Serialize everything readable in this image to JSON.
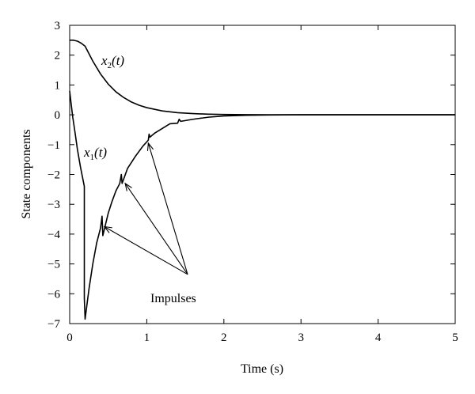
{
  "chart_data": {
    "type": "line",
    "title": "",
    "xlabel": "Time (s)",
    "ylabel": "State components",
    "xlim": [
      0,
      5
    ],
    "ylim": [
      -7,
      3
    ],
    "x_ticks": [
      0,
      1,
      2,
      3,
      4,
      5
    ],
    "y_ticks": [
      3,
      2,
      1,
      0,
      -1,
      -2,
      -3,
      -4,
      -5,
      -6,
      -7
    ],
    "grid": false,
    "series": [
      {
        "label": "x2(t)",
        "color": "#000000",
        "points": [
          [
            0,
            2.5
          ],
          [
            0.05,
            2.5
          ],
          [
            0.1,
            2.47
          ],
          [
            0.15,
            2.4
          ],
          [
            0.2,
            2.3
          ],
          [
            0.3,
            1.8
          ],
          [
            0.4,
            1.37
          ],
          [
            0.5,
            1.03
          ],
          [
            0.6,
            0.77
          ],
          [
            0.7,
            0.58
          ],
          [
            0.8,
            0.43
          ],
          [
            0.9,
            0.32
          ],
          [
            1.0,
            0.24
          ],
          [
            1.2,
            0.13
          ],
          [
            1.4,
            0.07
          ],
          [
            1.6,
            0.04
          ],
          [
            1.8,
            0.02
          ],
          [
            2.0,
            0.01
          ],
          [
            2.3,
            0.004
          ],
          [
            2.6,
            0.0
          ],
          [
            3.0,
            0.0
          ],
          [
            4.0,
            0.0
          ],
          [
            5.0,
            0.0
          ]
        ]
      },
      {
        "label": "x1(t)",
        "color": "#000000",
        "points": [
          [
            0,
            0.8
          ],
          [
            0.02,
            0.35
          ],
          [
            0.04,
            -0.08
          ],
          [
            0.07,
            -0.6
          ],
          [
            0.1,
            -1.15
          ],
          [
            0.14,
            -1.75
          ],
          [
            0.19,
            -2.4
          ],
          [
            0.19,
            -6.15
          ],
          [
            0.2,
            -6.85
          ],
          [
            0.25,
            -5.85
          ],
          [
            0.3,
            -5.0
          ],
          [
            0.35,
            -4.3
          ],
          [
            0.4,
            -3.8
          ],
          [
            0.42,
            -3.4
          ],
          [
            0.43,
            -4.05
          ],
          [
            0.5,
            -3.3
          ],
          [
            0.55,
            -2.9
          ],
          [
            0.6,
            -2.55
          ],
          [
            0.65,
            -2.3
          ],
          [
            0.67,
            -2.0
          ],
          [
            0.68,
            -2.3
          ],
          [
            0.75,
            -1.8
          ],
          [
            0.85,
            -1.4
          ],
          [
            0.95,
            -1.05
          ],
          [
            1.02,
            -0.85
          ],
          [
            1.03,
            -0.65
          ],
          [
            1.04,
            -0.75
          ],
          [
            1.1,
            -0.62
          ],
          [
            1.2,
            -0.46
          ],
          [
            1.3,
            -0.3
          ],
          [
            1.4,
            -0.28
          ],
          [
            1.42,
            -0.15
          ],
          [
            1.44,
            -0.22
          ],
          [
            1.6,
            -0.15
          ],
          [
            1.8,
            -0.08
          ],
          [
            2.0,
            -0.04
          ],
          [
            2.3,
            -0.015
          ],
          [
            2.6,
            -0.005
          ],
          [
            3.0,
            0.0
          ],
          [
            4.0,
            0.0
          ],
          [
            5.0,
            0.0
          ]
        ]
      }
    ],
    "annotations": {
      "impulses_text": "Impulses",
      "impulse_targets": [
        [
          0.45,
          -3.75
        ],
        [
          0.72,
          -2.3
        ],
        [
          1.02,
          -0.95
        ]
      ],
      "arrow_origin": [
        1.53,
        -5.35
      ]
    }
  }
}
